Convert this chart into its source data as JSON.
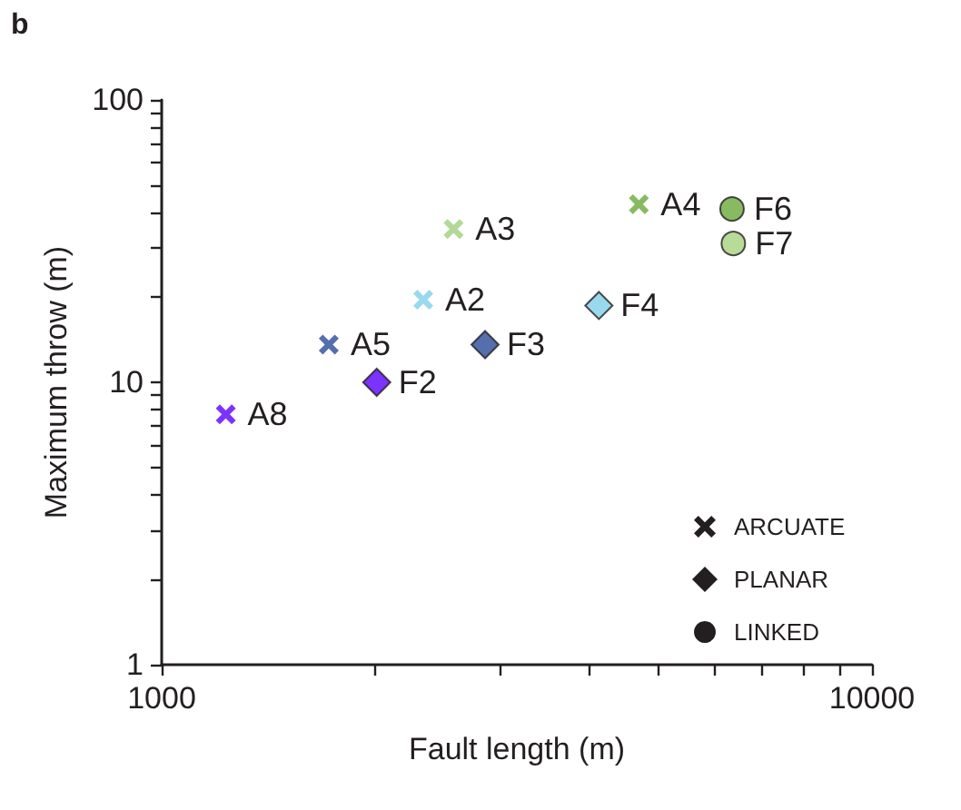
{
  "chart_data": {
    "type": "scatter",
    "xlabel": "Fault length (m)",
    "ylabel": "Maximum throw (m)",
    "log": "xy",
    "grid": false,
    "xlim": [
      1000,
      10000
    ],
    "ylim": [
      1,
      100
    ],
    "xticks": [
      1000,
      {
        "value": 2000,
        "label": null
      },
      {
        "value": 3000,
        "label": null
      },
      {
        "value": 4000,
        "label": null
      },
      {
        "value": 5000,
        "label": null
      },
      {
        "value": 6000,
        "label": null
      },
      {
        "value": 7000,
        "label": null
      },
      {
        "value": 8000,
        "label": null
      },
      {
        "value": 9000,
        "label": null
      },
      10000
    ],
    "yticks": [
      1,
      {
        "value": 2,
        "label": null
      },
      {
        "value": 3,
        "label": null
      },
      {
        "value": 4,
        "label": null
      },
      {
        "value": 5,
        "label": null
      },
      {
        "value": 6,
        "label": null
      },
      {
        "value": 7,
        "label": null
      },
      {
        "value": 8,
        "label": null
      },
      {
        "value": 9,
        "label": null
      },
      10,
      {
        "value": 20,
        "label": null
      },
      {
        "value": 30,
        "label": null
      },
      {
        "value": 40,
        "label": null
      },
      {
        "value": 50,
        "label": null
      },
      {
        "value": 60,
        "label": null
      },
      {
        "value": 70,
        "label": null
      },
      {
        "value": 80,
        "label": null
      },
      {
        "value": 90,
        "label": null
      },
      100
    ],
    "series": [
      {
        "marker": "cross",
        "x": [
          1231,
          1719,
          2335,
          2576,
          4697
        ],
        "values": [
          7.7,
          13.6,
          19.6,
          34.9,
          42.7
        ],
        "colors": [
          "#5b00ff",
          "#2a4a9a",
          "#7fd0ea",
          "#9fd07a",
          "#6aaa3a"
        ]
      },
      {
        "marker": "diamond",
        "x": [
          2008,
          2853,
          4126
        ],
        "values": [
          10,
          13.6,
          18.7
        ],
        "colors": [
          "#5b00ff",
          "#2a4a9a",
          "#7fd0ea"
        ]
      },
      {
        "marker": "circle",
        "x": [
          6353,
          6380
        ],
        "values": [
          41.1,
          31.0
        ],
        "colors": [
          "#6aaa3a",
          "#a6d27e"
        ]
      }
    ],
    "annotations": [
      "b",
      "ARCUATE",
      "PLANAR",
      "LINKED",
      {
        "text": "A8",
        "x": 1231,
        "y": 7.7
      },
      {
        "text": "A5",
        "x": 1719,
        "y": 13.6
      },
      {
        "text": "A2",
        "x": 2335,
        "y": 19.6
      },
      {
        "text": "A3",
        "x": 2576,
        "y": 34.9
      },
      {
        "text": "A4",
        "x": 4697,
        "y": 42.7
      },
      {
        "text": "F2",
        "x": 2008,
        "y": 10
      },
      {
        "text": "F3",
        "x": 2853,
        "y": 13.6
      },
      {
        "text": "F4",
        "x": 4126,
        "y": 18.7
      },
      {
        "text": "F6",
        "x": 6353,
        "y": 41.1
      },
      {
        "text": "F7",
        "x": 6380,
        "y": 31.0
      }
    ]
  }
}
